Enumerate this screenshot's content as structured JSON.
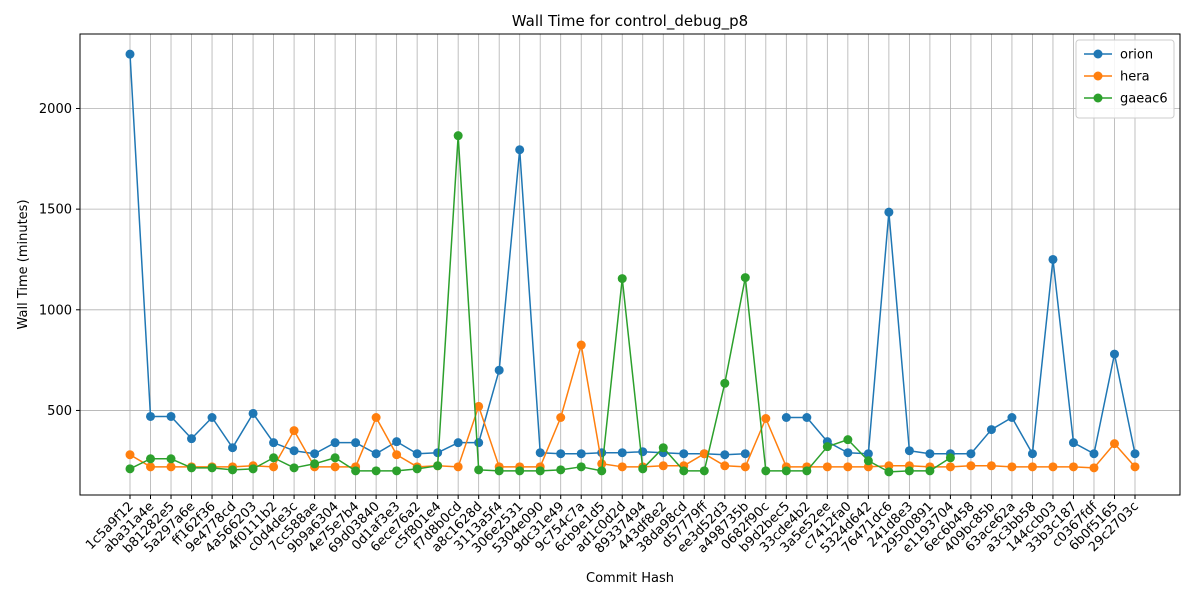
{
  "chart_data": {
    "type": "line",
    "title": "Wall Time for control_debug_p8",
    "xlabel": "Commit Hash",
    "ylabel": "Wall Time (minutes)",
    "ylim": [
      80,
      2370
    ],
    "yticks": [
      500,
      1000,
      1500,
      2000
    ],
    "grid": true,
    "legend_position": "top-right",
    "categories": [
      "1c5a9f12",
      "aba31a4e",
      "b81282e5",
      "5a297a6e",
      "ff162f36",
      "9e4778cd",
      "4a566203",
      "4f0111b2",
      "c0d4de3c",
      "7cc588ae",
      "9b9a6304",
      "4e75e7b4",
      "69d03840",
      "0d1af3e3",
      "6ece76a2",
      "c5f801e4",
      "f7d8b0cd",
      "a8c1628d",
      "3113a5f4",
      "306e2531",
      "5304e090",
      "9dc31e49",
      "9c754c7a",
      "6cb9e1d5",
      "ad1c0d2d",
      "89337494",
      "443df8e2",
      "38da98cd",
      "d57779ff",
      "ee3d52d3",
      "a498735b",
      "0682f90c",
      "b9d2bec5",
      "33cde4b2",
      "3a5e52ee",
      "c7412fa0",
      "5324d642",
      "76471dc6",
      "241d8e3",
      "29500891",
      "e1193704",
      "6ec6b458",
      "409bc85b",
      "63ace62a",
      "a3c3bb58",
      "144ccb03",
      "33b3c187",
      "c0367fdf",
      "6b0f5165",
      "29c2703c"
    ],
    "series": [
      {
        "name": "orion",
        "color": "#1f77b4",
        "values": [
          2270,
          470,
          470,
          360,
          465,
          315,
          485,
          340,
          300,
          285,
          340,
          340,
          285,
          345,
          285,
          290,
          340,
          340,
          700,
          1795,
          290,
          285,
          285,
          290,
          290,
          295,
          290,
          285,
          285,
          280,
          285,
          null,
          465,
          465,
          345,
          290,
          285,
          1485,
          300,
          285,
          285,
          285,
          405,
          465,
          285,
          1250,
          340,
          285,
          780,
          285
        ]
      },
      {
        "name": "hera",
        "color": "#ff7f0e",
        "values": [
          280,
          220,
          220,
          220,
          220,
          220,
          225,
          220,
          400,
          220,
          220,
          220,
          465,
          280,
          220,
          225,
          220,
          520,
          220,
          220,
          220,
          465,
          825,
          235,
          220,
          220,
          225,
          225,
          285,
          225,
          220,
          460,
          220,
          220,
          220,
          220,
          220,
          225,
          225,
          220,
          220,
          225,
          225,
          220,
          220,
          220,
          220,
          215,
          335,
          220
        ]
      },
      {
        "name": "gaeac6",
        "color": "#2ca02c",
        "values": [
          210,
          260,
          260,
          215,
          215,
          205,
          210,
          265,
          215,
          235,
          265,
          200,
          200,
          200,
          210,
          225,
          1865,
          205,
          200,
          200,
          200,
          205,
          220,
          200,
          1155,
          210,
          315,
          200,
          200,
          635,
          1160,
          200,
          200,
          200,
          320,
          355,
          250,
          195,
          200,
          200,
          265,
          null,
          null,
          null,
          null,
          null,
          null,
          null,
          null,
          null
        ]
      }
    ]
  }
}
